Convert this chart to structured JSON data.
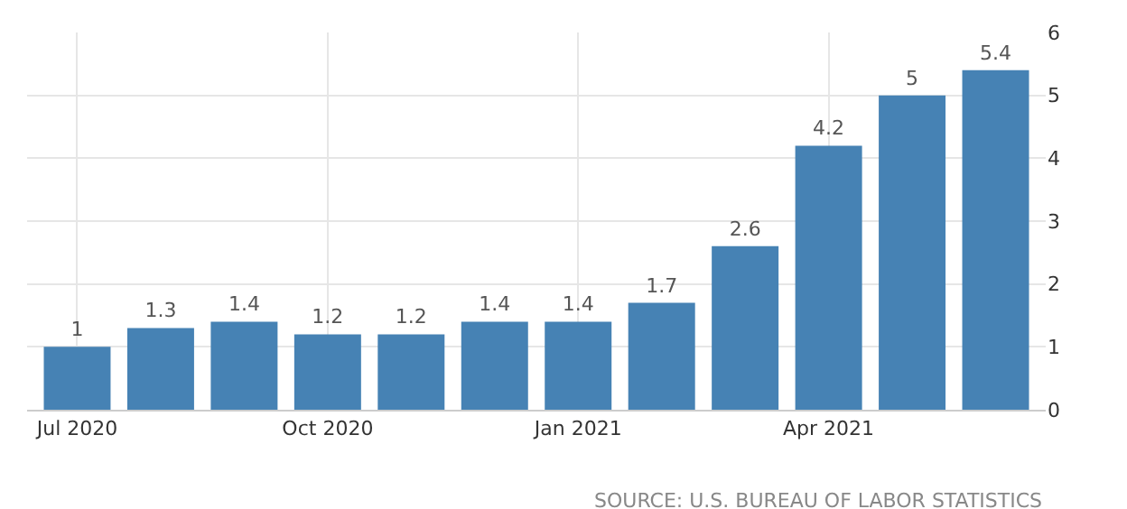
{
  "chart_data": {
    "type": "bar",
    "categories": [
      "Jul 2020",
      null,
      null,
      "Oct 2020",
      null,
      null,
      "Jan 2021",
      null,
      null,
      "Apr 2021",
      null,
      null
    ],
    "values": [
      1,
      1.3,
      1.4,
      1.2,
      1.2,
      1.4,
      1.4,
      1.7,
      2.6,
      4.2,
      5,
      5.4
    ],
    "color": "#4682b4",
    "ylim": [
      0,
      6
    ],
    "yticks": [
      0,
      1,
      2,
      3,
      4,
      5,
      6
    ],
    "grid": true,
    "data_labels": true,
    "annotations": [
      "SOURCE: U.S. BUREAU OF LABOR STATISTICS"
    ]
  }
}
